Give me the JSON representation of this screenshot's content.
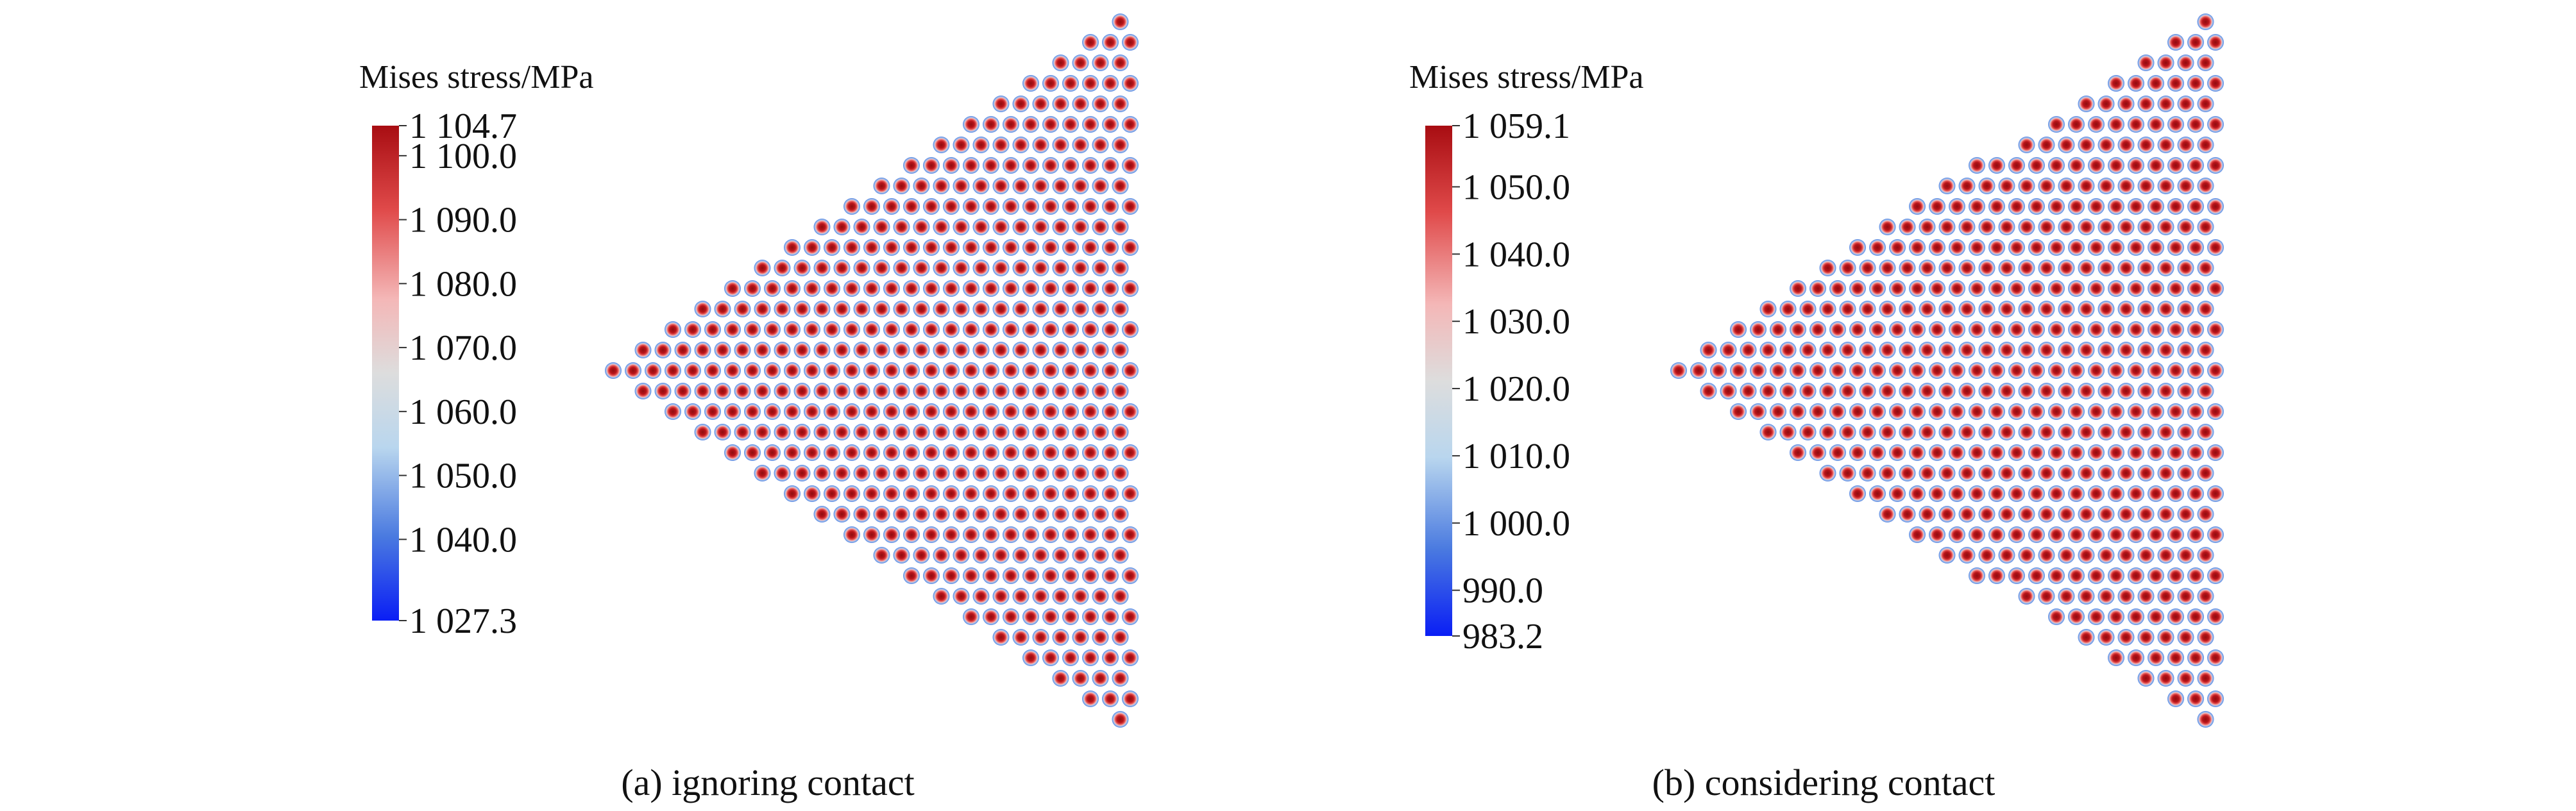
{
  "panels": [
    {
      "id": "a",
      "legend_title": "Mises stress/MPa",
      "tick_labels": [
        "1 104.7",
        "1 100.0",
        "1 090.0",
        "1 080.0",
        "1 070.0",
        "1 060.0",
        "1 050.0",
        "1 040.0",
        "1 027.3"
      ],
      "tick_values": [
        1104.7,
        1100.0,
        1090.0,
        1080.0,
        1070.0,
        1060.0,
        1050.0,
        1040.0,
        1027.3
      ],
      "range": [
        1027.3,
        1104.7
      ],
      "caption": "(a) ignoring contact"
    },
    {
      "id": "b",
      "legend_title": "Mises stress/MPa",
      "tick_labels": [
        "1 059.1",
        "1 050.0",
        "1 040.0",
        "1 030.0",
        "1 020.0",
        "1 010.0",
        "1 000.0",
        "990.0",
        "983.2"
      ],
      "tick_values": [
        1059.1,
        1050.0,
        1040.0,
        1030.0,
        1020.0,
        1010.0,
        1000.0,
        990.0,
        983.2
      ],
      "range": [
        983.2,
        1059.1
      ],
      "caption": "(b) considering contact"
    }
  ],
  "colormap": [
    "#0a1ef5",
    "#4a7ae0",
    "#b9d6ee",
    "#dddddd",
    "#f4b7b7",
    "#e04a4a",
    "#a80d12"
  ]
}
